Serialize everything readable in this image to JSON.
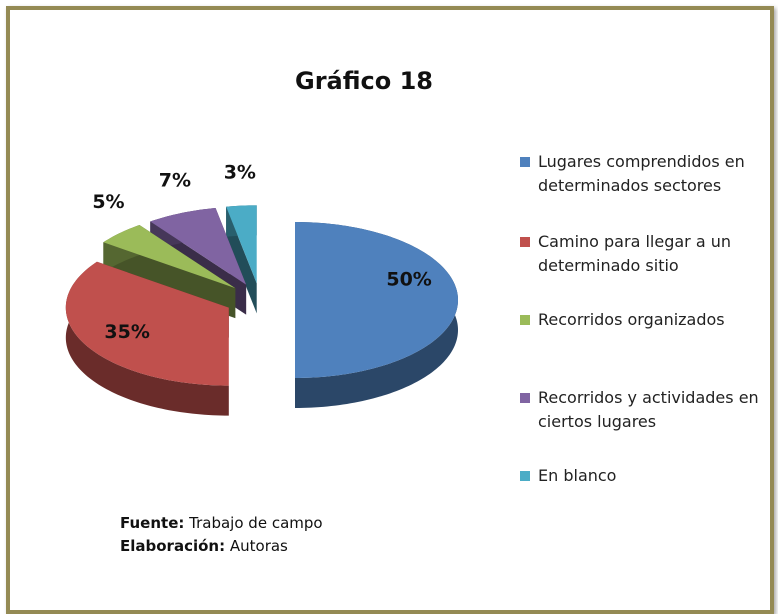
{
  "chart_data": {
    "type": "pie3d",
    "title": "Gráfico 18",
    "categories": [
      "Lugares comprendidos en determinados sectores",
      "Camino para llegar a un determinado sitio",
      "Recorridos organizados",
      "Recorridos y actividades en ciertos lugares",
      "En blanco"
    ],
    "values": [
      50,
      35,
      5,
      7,
      3
    ],
    "value_labels": [
      "50%",
      "35%",
      "5%",
      "7%",
      "3%"
    ],
    "colors": [
      "#4f81bd",
      "#c0504d",
      "#9bbb59",
      "#8064a2",
      "#4bacc6"
    ],
    "legend": "right"
  },
  "notes": [
    {
      "label": "Fuente:",
      "text": "Trabajo de campo"
    },
    {
      "label": "Elaboración:",
      "text": "Autoras"
    }
  ]
}
